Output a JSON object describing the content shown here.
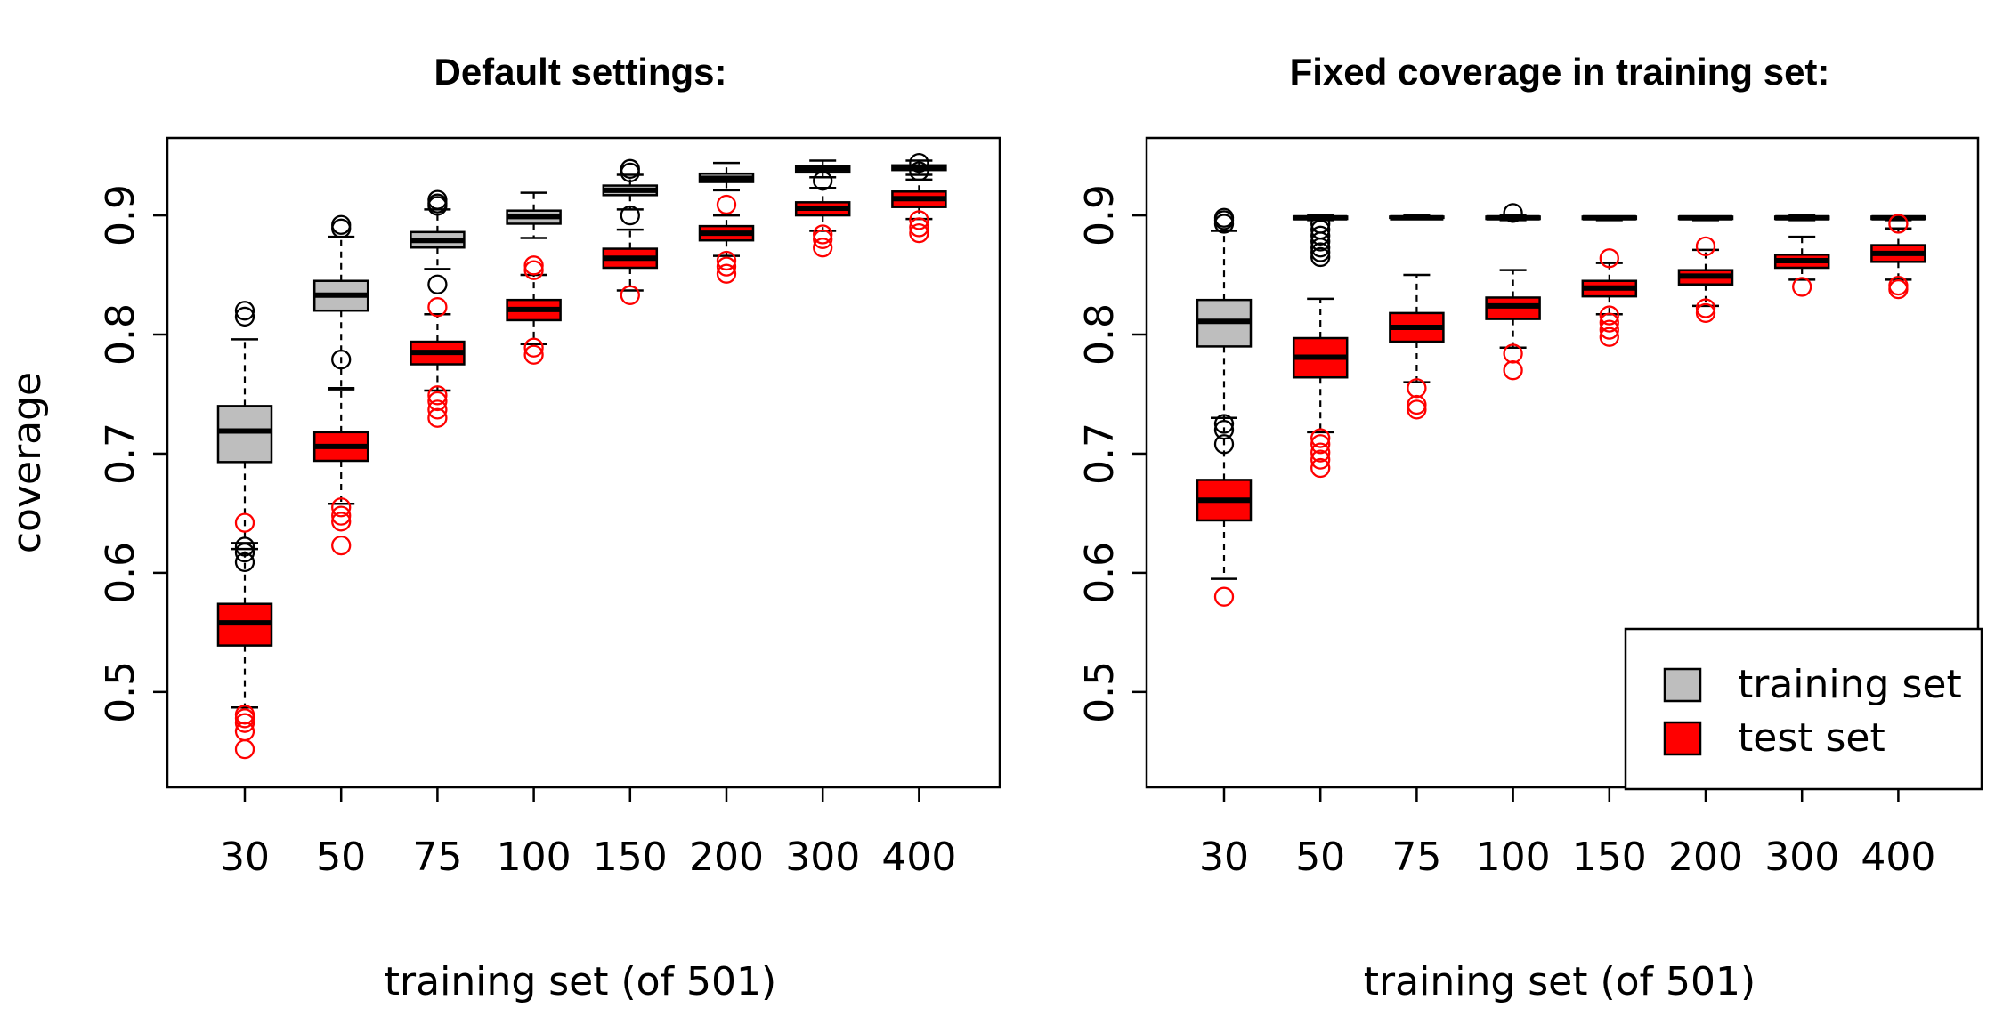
{
  "chart_data": [
    {
      "type": "box",
      "title": "Default settings:",
      "xlabel": "training set (of 501)",
      "ylabel": "coverage",
      "categories": [
        "30",
        "50",
        "75",
        "100",
        "150",
        "200",
        "300",
        "400"
      ],
      "ylim": [
        0.42,
        0.965
      ],
      "yticks": [
        "0.5",
        "0.6",
        "0.7",
        "0.8",
        "0.9"
      ],
      "series": [
        {
          "name": "training set",
          "color": "#bebebe",
          "outlier_color": "#000000",
          "boxes": [
            {
              "min": 0.625,
              "q1": 0.693,
              "median": 0.719,
              "q3": 0.74,
              "max": 0.796,
              "outliers": [
                0.622,
                0.617,
                0.609,
                0.815,
                0.82
              ]
            },
            {
              "min": 0.755,
              "q1": 0.82,
              "median": 0.833,
              "q3": 0.845,
              "max": 0.882,
              "outliers": [
                0.779,
                0.889,
                0.892
              ]
            },
            {
              "min": 0.855,
              "q1": 0.873,
              "median": 0.879,
              "q3": 0.886,
              "max": 0.905,
              "outliers": [
                0.842,
                0.908,
                0.913,
                0.91
              ]
            },
            {
              "min": 0.881,
              "q1": 0.893,
              "median": 0.899,
              "q3": 0.904,
              "max": 0.919,
              "outliers": []
            },
            {
              "min": 0.905,
              "q1": 0.917,
              "median": 0.921,
              "q3": 0.925,
              "max": 0.934,
              "outliers": [
                0.9,
                0.936,
                0.939
              ]
            },
            {
              "min": 0.921,
              "q1": 0.928,
              "median": 0.931,
              "q3": 0.935,
              "max": 0.944,
              "outliers": []
            },
            {
              "min": 0.932,
              "q1": 0.936,
              "median": 0.939,
              "q3": 0.941,
              "max": 0.946,
              "outliers": [
                0.929
              ]
            },
            {
              "min": 0.934,
              "q1": 0.938,
              "median": 0.94,
              "q3": 0.942,
              "max": 0.946,
              "outliers": [
                0.944,
                0.937
              ]
            }
          ]
        },
        {
          "name": "test set",
          "color": "#ff0000",
          "outlier_color": "#ff0000",
          "boxes": [
            {
              "min": 0.487,
              "q1": 0.539,
              "median": 0.558,
              "q3": 0.574,
              "max": 0.62,
              "outliers": [
                0.642,
                0.481,
                0.474,
                0.467,
                0.452,
                0.478
              ]
            },
            {
              "min": 0.658,
              "q1": 0.694,
              "median": 0.706,
              "q3": 0.718,
              "max": 0.754,
              "outliers": [
                0.655,
                0.648,
                0.643,
                0.623
              ]
            },
            {
              "min": 0.753,
              "q1": 0.775,
              "median": 0.785,
              "q3": 0.794,
              "max": 0.817,
              "outliers": [
                0.823,
                0.749,
                0.744,
                0.737,
                0.73
              ]
            },
            {
              "min": 0.792,
              "q1": 0.812,
              "median": 0.821,
              "q3": 0.829,
              "max": 0.85,
              "outliers": [
                0.858,
                0.854,
                0.789,
                0.783
              ]
            },
            {
              "min": 0.837,
              "q1": 0.856,
              "median": 0.864,
              "q3": 0.872,
              "max": 0.888,
              "outliers": [
                0.833
              ]
            },
            {
              "min": 0.866,
              "q1": 0.879,
              "median": 0.885,
              "q3": 0.891,
              "max": 0.9,
              "outliers": [
                0.909,
                0.862,
                0.857,
                0.851
              ]
            },
            {
              "min": 0.887,
              "q1": 0.9,
              "median": 0.906,
              "q3": 0.911,
              "max": 0.923,
              "outliers": [
                0.884,
                0.88,
                0.873
              ]
            },
            {
              "min": 0.897,
              "q1": 0.907,
              "median": 0.914,
              "q3": 0.92,
              "max": 0.93,
              "outliers": [
                0.896,
                0.89,
                0.885
              ]
            }
          ]
        }
      ]
    },
    {
      "type": "box",
      "title": "Fixed coverage in training set:",
      "xlabel": "training set (of 501)",
      "ylabel": "",
      "categories": [
        "30",
        "50",
        "75",
        "100",
        "150",
        "200",
        "300",
        "400"
      ],
      "ylim": [
        0.42,
        0.965
      ],
      "yticks": [
        "0.5",
        "0.6",
        "0.7",
        "0.8",
        "0.9"
      ],
      "legend": {
        "position": "bottom-right",
        "entries": [
          "training set",
          "test set"
        ]
      },
      "series": [
        {
          "name": "training set",
          "color": "#bebebe",
          "outlier_color": "#000000",
          "boxes": [
            {
              "min": 0.73,
              "q1": 0.79,
              "median": 0.811,
              "q3": 0.829,
              "max": 0.887,
              "outliers": [
                0.893,
                0.896,
                0.898,
                0.725,
                0.72,
                0.708
              ]
            },
            {
              "min": 0.896,
              "q1": 0.897,
              "median": 0.898,
              "q3": 0.899,
              "max": 0.9,
              "outliers": [
                0.893,
                0.888,
                0.883,
                0.878,
                0.873,
                0.869,
                0.865
              ]
            },
            {
              "min": 0.897,
              "q1": 0.898,
              "median": 0.898,
              "q3": 0.899,
              "max": 0.9,
              "outliers": []
            },
            {
              "min": 0.896,
              "q1": 0.897,
              "median": 0.898,
              "q3": 0.899,
              "max": 0.9,
              "outliers": [
                0.902
              ]
            },
            {
              "min": 0.896,
              "q1": 0.897,
              "median": 0.898,
              "q3": 0.899,
              "max": 0.899,
              "outliers": []
            },
            {
              "min": 0.896,
              "q1": 0.897,
              "median": 0.898,
              "q3": 0.899,
              "max": 0.899,
              "outliers": []
            },
            {
              "min": 0.896,
              "q1": 0.897,
              "median": 0.898,
              "q3": 0.899,
              "max": 0.9,
              "outliers": []
            },
            {
              "min": 0.896,
              "q1": 0.897,
              "median": 0.898,
              "q3": 0.899,
              "max": 0.899,
              "outliers": []
            }
          ]
        },
        {
          "name": "test set",
          "color": "#ff0000",
          "outlier_color": "#ff0000",
          "boxes": [
            {
              "min": 0.595,
              "q1": 0.644,
              "median": 0.661,
              "q3": 0.678,
              "max": 0.73,
              "outliers": [
                0.58
              ]
            },
            {
              "min": 0.718,
              "q1": 0.764,
              "median": 0.781,
              "q3": 0.797,
              "max": 0.83,
              "outliers": [
                0.713,
                0.708,
                0.701,
                0.695,
                0.688
              ]
            },
            {
              "min": 0.76,
              "q1": 0.794,
              "median": 0.806,
              "q3": 0.818,
              "max": 0.85,
              "outliers": [
                0.755,
                0.741,
                0.737
              ]
            },
            {
              "min": 0.789,
              "q1": 0.813,
              "median": 0.824,
              "q3": 0.831,
              "max": 0.854,
              "outliers": [
                0.784,
                0.77
              ]
            },
            {
              "min": 0.817,
              "q1": 0.832,
              "median": 0.839,
              "q3": 0.845,
              "max": 0.86,
              "outliers": [
                0.864,
                0.816,
                0.81,
                0.804,
                0.798
              ]
            },
            {
              "min": 0.824,
              "q1": 0.842,
              "median": 0.849,
              "q3": 0.854,
              "max": 0.871,
              "outliers": [
                0.874,
                0.822,
                0.818
              ]
            },
            {
              "min": 0.846,
              "q1": 0.856,
              "median": 0.862,
              "q3": 0.867,
              "max": 0.882,
              "outliers": [
                0.84
              ]
            },
            {
              "min": 0.846,
              "q1": 0.861,
              "median": 0.868,
              "q3": 0.875,
              "max": 0.889,
              "outliers": [
                0.893,
                0.841,
                0.838
              ]
            }
          ]
        }
      ]
    }
  ]
}
